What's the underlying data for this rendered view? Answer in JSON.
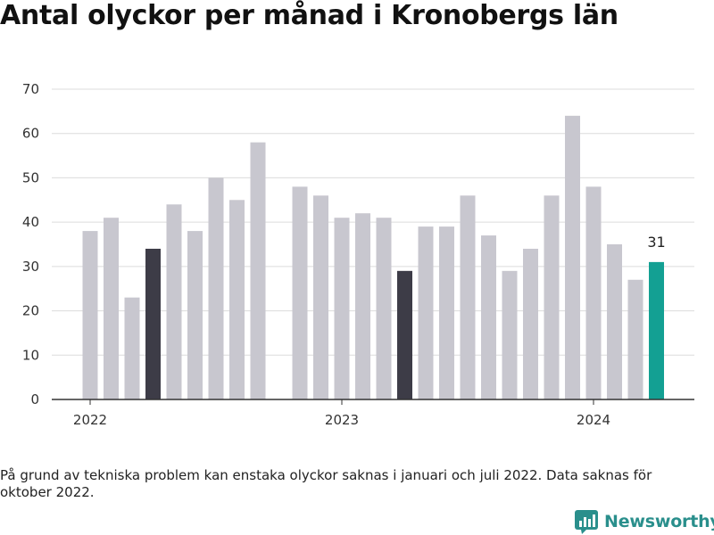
{
  "title": "Antal olyckor per månad i Kronobergs län",
  "note": "På grund av tekniska problem kan enstaka olyckor saknas i januari och juli 2022. Data saknas för oktober 2022.",
  "brand": {
    "name": "Newsworthy",
    "icon": "newsworthy-logo-icon",
    "color": "#2a8f8c"
  },
  "colors": {
    "default": "#c8c7cf",
    "highlight": "#3d3c47",
    "latest": "#13a093",
    "grid": "#dcdcdc",
    "axis": "#333333"
  },
  "chart_data": {
    "type": "bar",
    "ylim": [
      0,
      70
    ],
    "yticks": [
      0,
      10,
      20,
      30,
      40,
      50,
      60,
      70
    ],
    "xticks": [
      {
        "label": "2022",
        "month": "2022-01"
      },
      {
        "label": "2023",
        "month": "2023-01"
      },
      {
        "label": "2024",
        "month": "2024-01"
      }
    ],
    "grid": true,
    "bars": [
      {
        "month": "2022-01",
        "value": 38,
        "style": "default"
      },
      {
        "month": "2022-02",
        "value": 41,
        "style": "default"
      },
      {
        "month": "2022-03",
        "value": 23,
        "style": "default"
      },
      {
        "month": "2022-04",
        "value": 34,
        "style": "highlight"
      },
      {
        "month": "2022-05",
        "value": 44,
        "style": "default"
      },
      {
        "month": "2022-06",
        "value": 38,
        "style": "default"
      },
      {
        "month": "2022-07",
        "value": 50,
        "style": "default"
      },
      {
        "month": "2022-08",
        "value": 45,
        "style": "default"
      },
      {
        "month": "2022-09",
        "value": 58,
        "style": "default"
      },
      {
        "month": "2022-10",
        "value": null,
        "style": "default"
      },
      {
        "month": "2022-11",
        "value": 48,
        "style": "default"
      },
      {
        "month": "2022-12",
        "value": 46,
        "style": "default"
      },
      {
        "month": "2023-01",
        "value": 41,
        "style": "default"
      },
      {
        "month": "2023-02",
        "value": 42,
        "style": "default"
      },
      {
        "month": "2023-03",
        "value": 41,
        "style": "default"
      },
      {
        "month": "2023-04",
        "value": 29,
        "style": "highlight"
      },
      {
        "month": "2023-05",
        "value": 39,
        "style": "default"
      },
      {
        "month": "2023-06",
        "value": 39,
        "style": "default"
      },
      {
        "month": "2023-07",
        "value": 46,
        "style": "default"
      },
      {
        "month": "2023-08",
        "value": 37,
        "style": "default"
      },
      {
        "month": "2023-09",
        "value": 29,
        "style": "default"
      },
      {
        "month": "2023-10",
        "value": 34,
        "style": "default"
      },
      {
        "month": "2023-11",
        "value": 46,
        "style": "default"
      },
      {
        "month": "2023-12",
        "value": 64,
        "style": "default"
      },
      {
        "month": "2024-01",
        "value": 48,
        "style": "default"
      },
      {
        "month": "2024-02",
        "value": 35,
        "style": "default"
      },
      {
        "month": "2024-03",
        "value": 27,
        "style": "default"
      },
      {
        "month": "2024-04",
        "value": 31,
        "style": "latest",
        "label": "31"
      }
    ]
  }
}
